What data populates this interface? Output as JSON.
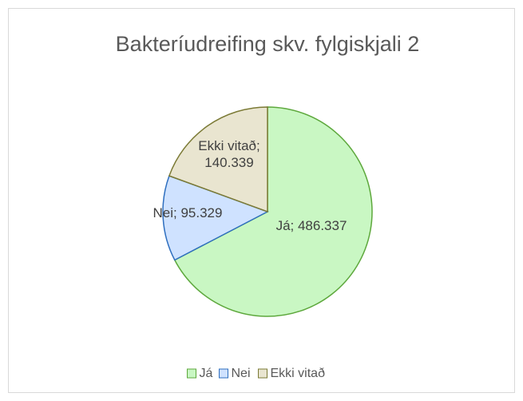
{
  "chart_data": {
    "type": "pie",
    "title": "Bakteríudreifing skv. fylgiskjali 2",
    "categories": [
      "Já",
      "Nei",
      "Ekki vitað"
    ],
    "values": [
      486337,
      95329,
      140339
    ],
    "value_labels": [
      "Já; 486.337",
      "Nei; 95.329",
      "Ekki vitað; 140.339"
    ],
    "colors": [
      "#c9f7c3",
      "#cfe2ff",
      "#e9e5d0"
    ],
    "stroke_colors": [
      "#5da83c",
      "#2f6fbf",
      "#7b7a35"
    ],
    "legend": "bottom"
  }
}
